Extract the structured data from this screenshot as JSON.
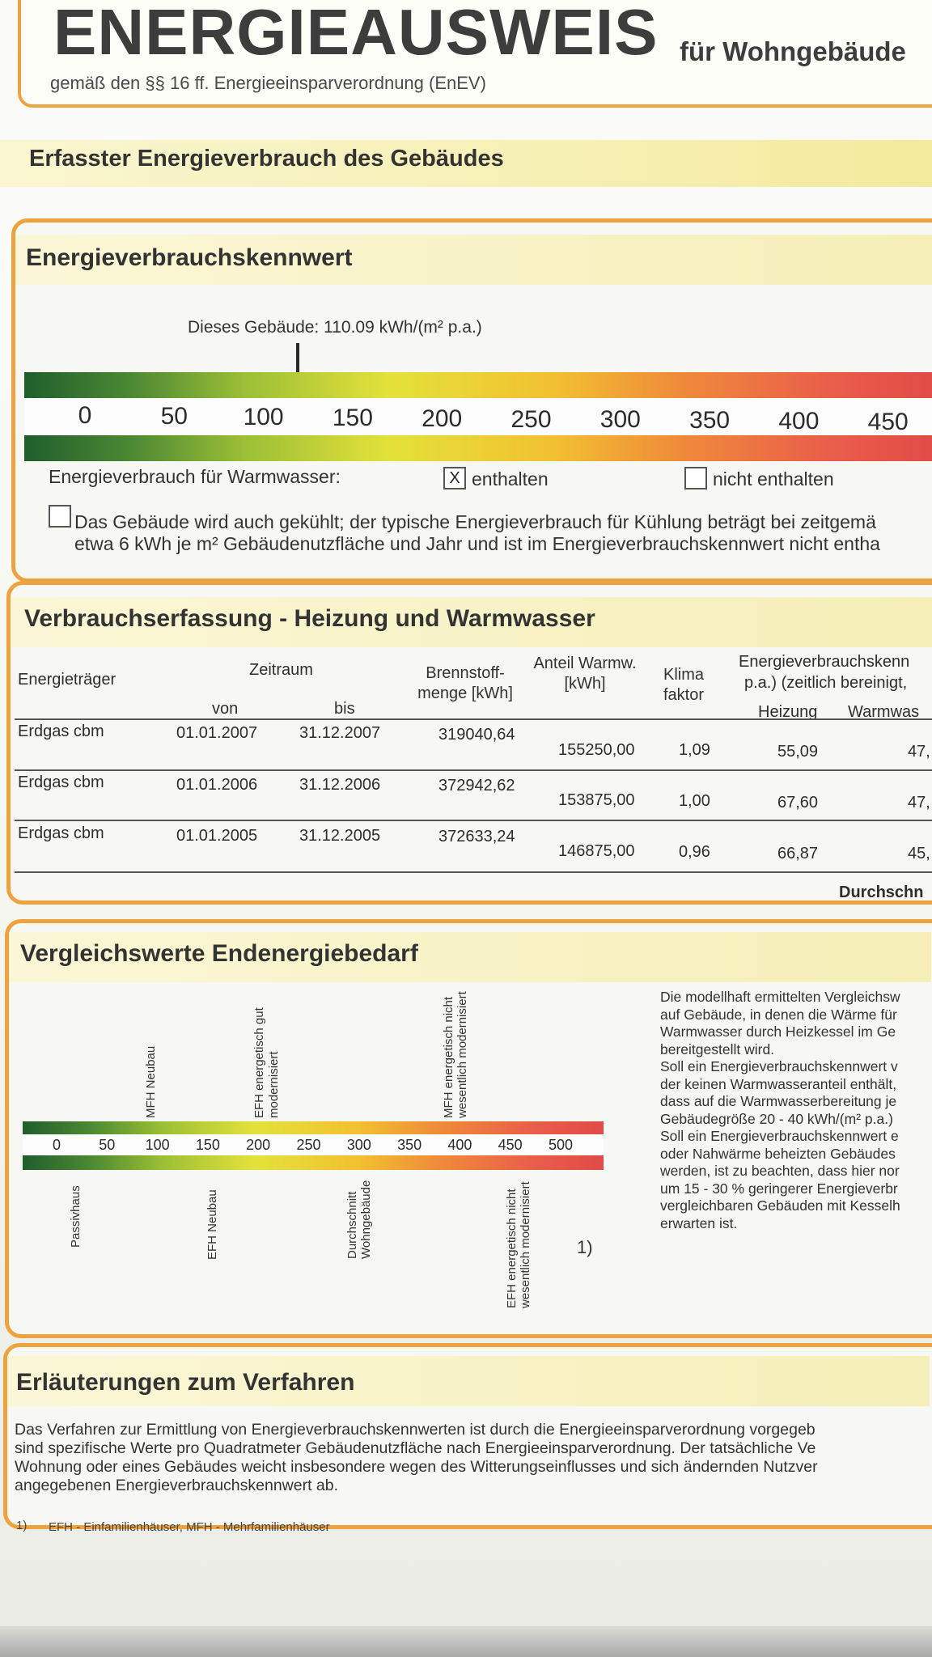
{
  "header": {
    "title": "ENERGIEAUSWEIS",
    "subtitle": "gemäß den §§ 16 ff. Energieeinsparverordnung (EnEV)",
    "type": "für Wohngebäude"
  },
  "section_main": "Erfasster Energieverbrauch des Gebäudes",
  "kennwert": {
    "heading": "Energieverbrauchskennwert",
    "building_label": "Dieses Gebäude: 110.09 kWh/(m² p.a.)",
    "building_value": 110.09,
    "scale_ticks": [
      "0",
      "50",
      "100",
      "150",
      "200",
      "250",
      "300",
      "350",
      "400",
      "450"
    ],
    "warmwasser_label": "Energieverbrauch für Warmwasser:",
    "enthalten_mark": "X",
    "enthalten_label": "enthalten",
    "nicht_enthalten_label": "nicht enthalten",
    "cooling_line1": "Das Gebäude wird auch gekühlt; der typische Energieverbrauch für Kühlung beträgt bei zeitgemä",
    "cooling_line2": "etwa 6 kWh je m² Gebäudenutzfläche und Jahr und ist im Energieverbrauchskennwert nicht entha"
  },
  "erfassung": {
    "heading": "Verbrauchserfassung - Heizung und Warmwasser",
    "headers": {
      "energietraeger": "Energieträger",
      "zeitraum": "Zeitraum",
      "von": "von",
      "bis": "bis",
      "brennstoff_1": "Brennstoff-",
      "brennstoff_2": "menge [kWh]",
      "anteil_1": "Anteil Warmw.",
      "anteil_2": "[kWh]",
      "klima_1": "Klima",
      "klima_2": "faktor",
      "kennwert_1": "Energieverbrauchskenn",
      "kennwert_2": "p.a.) (zeitlich bereinigt,",
      "heizung": "Heizung",
      "warmwasser": "Warmwas"
    },
    "rows": [
      {
        "traeger": "Erdgas cbm",
        "von": "01.01.2007",
        "bis": "31.12.2007",
        "menge": "319040,64",
        "anteil": "155250,00",
        "klima": "1,09",
        "heizung": "55,09",
        "warmwasser": "47,"
      },
      {
        "traeger": "Erdgas cbm",
        "von": "01.01.2006",
        "bis": "31.12.2006",
        "menge": "372942,62",
        "anteil": "153875,00",
        "klima": "1,00",
        "heizung": "67,60",
        "warmwasser": "47,"
      },
      {
        "traeger": "Erdgas cbm",
        "von": "01.01.2005",
        "bis": "31.12.2005",
        "menge": "372633,24",
        "anteil": "146875,00",
        "klima": "0,96",
        "heizung": "66,87",
        "warmwasser": "45,"
      }
    ],
    "durchschnitt": "Durchschn"
  },
  "vergleich": {
    "heading": "Vergleichswerte Endenergiebedarf",
    "scale_ticks": [
      "0",
      "50",
      "100",
      "150",
      "200",
      "250",
      "300",
      "350",
      "400",
      "450",
      "500"
    ],
    "labels_top": [
      "MFH Neubau",
      "EFH energetisch gut",
      "modernisiert",
      "MFH energetisch nicht",
      "wesentlich modernisiert"
    ],
    "labels_bottom": [
      "Passivhaus",
      "EFH Neubau",
      "Durchschnitt",
      "Wohngebäude",
      "EFH energetisch nicht",
      "wesentlich modernisiert"
    ],
    "footnote_ref": "1)",
    "side_text": [
      "Die modellhaft ermittelten Vergleichsw",
      "auf Gebäude, in denen die Wärme für",
      "Warmwasser durch Heizkessel im Ge",
      "bereitgestellt wird.",
      "Soll ein Energieverbrauchskennwert v",
      "der keinen Warmwasseranteil enthält,",
      "dass auf die Warmwasserbereitung je",
      "Gebäudegröße 20 - 40 kWh/(m² p.a.)",
      "Soll ein Energieverbrauchskennwert e",
      "oder Nahwärme beheizten Gebäudes",
      "werden, ist zu beachten, dass hier nor",
      "um 15 - 30 % geringerer Energieverbr",
      "vergleichbaren Gebäuden mit Kesselh",
      "erwarten ist."
    ]
  },
  "erlaeuterung": {
    "heading": "Erläuterungen zum Verfahren",
    "lines": [
      "Das Verfahren zur Ermittlung von Energieverbrauchskennwerten ist durch die Energieeinsparverordnung vorgegeb",
      "sind spezifische Werte pro Quadratmeter Gebäudenutzfläche nach Energieeinsparverordnung. Der tatsächliche Ve",
      "Wohnung oder eines Gebäudes weicht insbesondere wegen des Witterungseinflusses und sich ändernden Nutzver",
      "angegebenen Energieverbrauchskennwert ab."
    ]
  },
  "footnote": {
    "num": "1)",
    "text": "EFH - Einfamilienhäuser, MFH - Mehrfamilienhäuser"
  }
}
